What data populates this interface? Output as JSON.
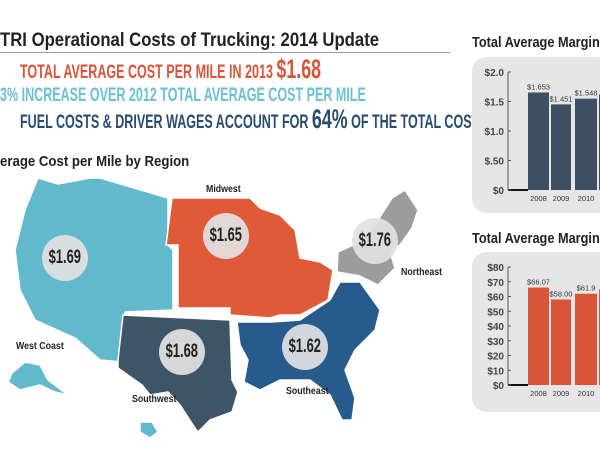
{
  "header": {
    "title": "TRI Operational Costs of Trucking: 2014 Update"
  },
  "facts": {
    "line1_text": "TOTAL AVERAGE COST PER MILE IN 2013 ",
    "line1_value": "$1.68",
    "line2_value": "3%",
    "line2_text": " INCREASE OVER 2012 TOTAL AVERAGE COST PER MILE",
    "line3_text": "FUEL COSTS & DRIVER WAGES ACCOUNT FOR ",
    "line3_value": "64%",
    "line3_suffix": " OF THE TOTAL COST PER MILE"
  },
  "map": {
    "title": "erage Cost per Mile by Region",
    "regions": [
      {
        "name": "West Coast",
        "value": "$1.69",
        "color": "#62b9cb"
      },
      {
        "name": "Midwest",
        "value": "$1.65",
        "color": "#df5a36"
      },
      {
        "name": "Northeast",
        "value": "$1.76",
        "color": "#9c9c9c"
      },
      {
        "name": "Southwest",
        "value": "$1.68",
        "color": "#3e5567"
      },
      {
        "name": "Southeast",
        "value": "$1.62",
        "color": "#265b8c"
      }
    ]
  },
  "chart_data": [
    {
      "type": "bar",
      "title": "Total Average Margin",
      "categories": [
        "2008",
        "2009",
        "2010"
      ],
      "values": [
        1.653,
        1.451,
        1.548
      ],
      "labels": [
        "$1.653",
        "$1.451",
        "$1.548"
      ],
      "ylim": [
        0,
        2.0
      ],
      "yticks": [
        "$0",
        "$.50",
        "$1.0",
        "$1.5",
        "$2.0"
      ],
      "ytick_values": [
        0,
        0.5,
        1.0,
        1.5,
        2.0
      ],
      "color": "#3d5063"
    },
    {
      "type": "bar",
      "title": "Total Average Margin",
      "categories": [
        "2008",
        "2009",
        "2010"
      ],
      "values": [
        66.07,
        58.0,
        61.9
      ],
      "labels": [
        "$66.07",
        "$58.00",
        "$61.9"
      ],
      "ylim": [
        0,
        80
      ],
      "yticks": [
        "$0",
        "$10",
        "$20",
        "$30",
        "$40",
        "$50",
        "$60",
        "$70",
        "$80"
      ],
      "ytick_values": [
        0,
        10,
        20,
        30,
        40,
        50,
        60,
        70,
        80
      ],
      "color": "#d9553a"
    }
  ]
}
